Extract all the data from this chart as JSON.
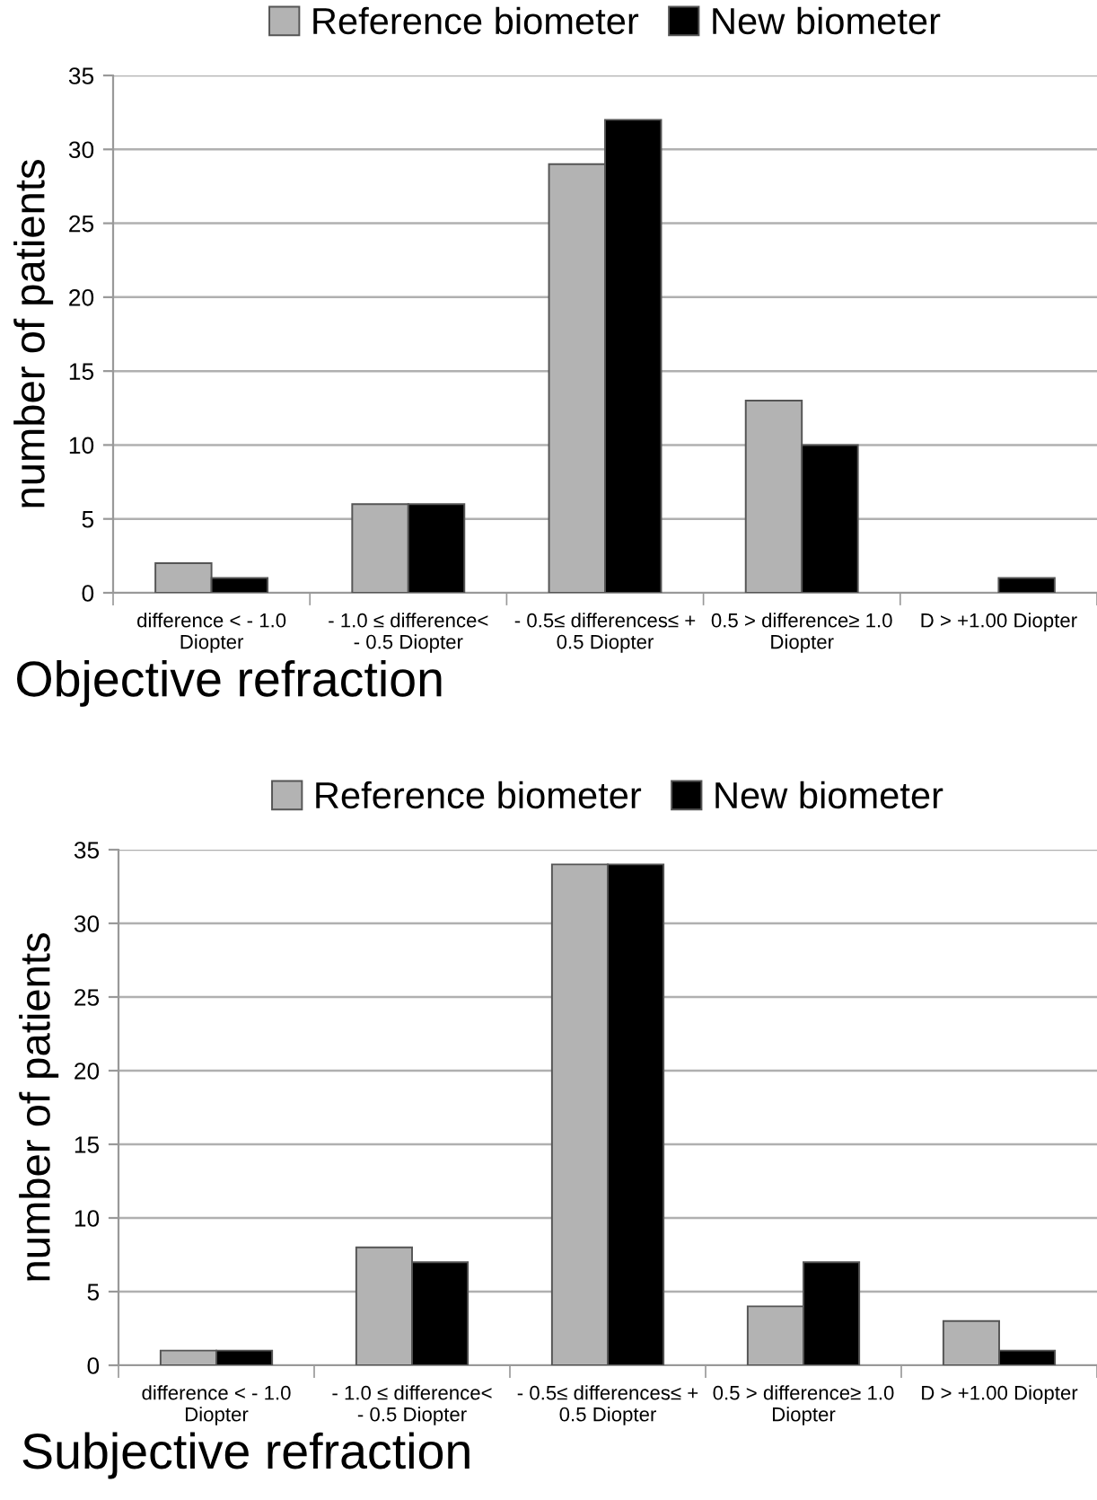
{
  "chart_data": [
    {
      "type": "bar",
      "xlabel": "Objective refraction",
      "ylabel": "number of patients",
      "categories": [
        "difference < - 1.0\nDiopter",
        "- 1.0 ≤ difference<\n- 0.5 Diopter",
        "- 0.5≤ differences≤ +\n0.5 Diopter",
        "0.5 > difference≥ 1.0\nDiopter",
        "D > +1.00 Diopter"
      ],
      "series": [
        {
          "name": "Reference biometer",
          "color": "#b3b3b3",
          "values": [
            2,
            6,
            29,
            13,
            0
          ]
        },
        {
          "name": "New biometer",
          "color": "#000000",
          "values": [
            1,
            6,
            32,
            10,
            1
          ]
        }
      ],
      "ylim": [
        0,
        35
      ],
      "yticks": [
        0,
        5,
        10,
        15,
        20,
        25,
        30,
        35
      ],
      "grid": "y",
      "legend": "top"
    },
    {
      "type": "bar",
      "xlabel": "Subjective refraction",
      "ylabel": "number of patients",
      "categories": [
        "difference < - 1.0\nDiopter",
        "- 1.0 ≤ difference<\n- 0.5 Diopter",
        "- 0.5≤ differences≤ +\n0.5 Diopter",
        "0.5 > difference≥ 1.0\nDiopter",
        "D > +1.00 Diopter"
      ],
      "series": [
        {
          "name": "Reference biometer",
          "color": "#b3b3b3",
          "values": [
            1,
            8,
            34,
            4,
            3
          ]
        },
        {
          "name": "New biometer",
          "color": "#000000",
          "values": [
            1,
            7,
            34,
            7,
            1
          ]
        }
      ],
      "ylim": [
        0,
        35
      ],
      "yticks": [
        0,
        5,
        10,
        15,
        20,
        25,
        30,
        35
      ],
      "grid": "y",
      "legend": "top"
    }
  ]
}
